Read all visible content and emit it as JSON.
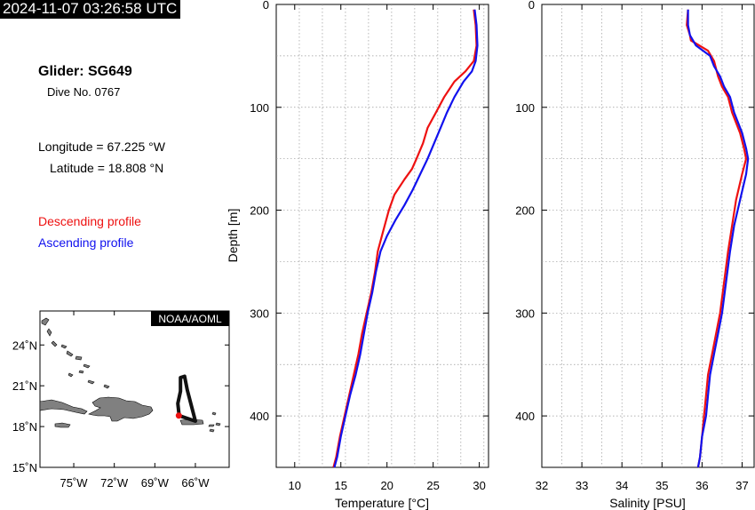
{
  "timestamp": "2024-11-07 03:26:58 UTC",
  "info": {
    "glider": "Glider: SG649",
    "dive": "Dive No. 0767",
    "longitude": "Longitude = 67.225 °W",
    "latitude": "Latitude = 18.808 °N",
    "descending_label": "Descending profile",
    "ascending_label": "Ascending profile"
  },
  "colors": {
    "descending": "#ee1111",
    "ascending": "#1111ee",
    "land": "#808080",
    "track": "#111111"
  },
  "map": {
    "credit": "NOAA/AOML",
    "lon_range": [
      -77.5,
      -63.5
    ],
    "lat_range": [
      15,
      26.5
    ],
    "lon_ticks": [
      -75,
      -72,
      -69,
      -66
    ],
    "lon_labels": [
      "75˚W",
      "72˚W",
      "69˚W",
      "66˚W"
    ],
    "lat_ticks": [
      15,
      18,
      21,
      24
    ],
    "lat_labels": [
      "15˚N",
      "18˚N",
      "21˚N",
      "24˚N"
    ],
    "track": [
      [
        -67.2,
        18.8
      ],
      [
        -66.6,
        18.6
      ],
      [
        -66.0,
        18.4
      ],
      [
        -66.6,
        20.7
      ],
      [
        -66.8,
        21.7
      ],
      [
        -67.1,
        21.6
      ],
      [
        -67.1,
        20.6
      ],
      [
        -67.3,
        19.7
      ],
      [
        -67.2,
        18.8
      ]
    ],
    "glider_position": [
      -67.225,
      18.808
    ]
  },
  "chart_data": [
    {
      "type": "line",
      "xlabel": "Temperature [°C]",
      "ylabel": "Depth [m]",
      "xlim": [
        8,
        31
      ],
      "ylim": [
        450,
        0
      ],
      "xticks": [
        10,
        15,
        20,
        25,
        30
      ],
      "yticks": [
        0,
        100,
        200,
        300,
        400
      ],
      "series": [
        {
          "name": "Descending profile",
          "x": [
            29.4,
            29.6,
            29.7,
            29.4,
            28.5,
            27.3,
            26.2,
            25.3,
            24.4,
            23.9,
            23.2,
            22.7,
            21.9,
            20.8,
            20.2,
            19.6,
            19.0,
            18.7,
            18.3,
            17.8,
            17.3,
            16.9,
            16.4,
            15.9,
            15.4,
            14.9,
            14.5,
            14.2
          ],
          "y": [
            5,
            20,
            40,
            55,
            65,
            75,
            90,
            105,
            120,
            135,
            150,
            160,
            170,
            185,
            200,
            220,
            240,
            260,
            280,
            300,
            320,
            340,
            360,
            380,
            400,
            420,
            440,
            450
          ]
        },
        {
          "name": "Ascending profile",
          "x": [
            29.5,
            29.7,
            29.8,
            29.6,
            29.2,
            28.3,
            27.3,
            26.5,
            25.8,
            25.1,
            24.4,
            23.6,
            22.8,
            21.9,
            20.9,
            20.0,
            19.3,
            18.8,
            18.4,
            17.9,
            17.5,
            17.1,
            16.6,
            16.0,
            15.5,
            15.0,
            14.6,
            14.3
          ],
          "y": [
            5,
            20,
            40,
            55,
            65,
            75,
            90,
            105,
            120,
            135,
            150,
            165,
            180,
            195,
            210,
            225,
            240,
            260,
            280,
            300,
            320,
            340,
            360,
            380,
            400,
            420,
            440,
            450
          ]
        }
      ]
    },
    {
      "type": "line",
      "xlabel": "Salinity [PSU]",
      "ylabel": "",
      "xlim": [
        32,
        37.3
      ],
      "ylim": [
        450,
        0
      ],
      "xticks": [
        32,
        33,
        34,
        35,
        36,
        37
      ],
      "yticks": [
        0,
        100,
        200,
        300,
        400
      ],
      "series": [
        {
          "name": "Descending profile",
          "x": [
            35.65,
            35.62,
            35.7,
            35.72,
            36.15,
            36.3,
            36.4,
            36.5,
            36.65,
            36.75,
            36.95,
            37.05,
            37.1,
            37.0,
            36.85,
            36.75,
            36.65,
            36.55,
            36.45,
            36.35,
            36.25,
            36.15,
            36.1,
            36.05,
            36.0,
            35.95,
            35.9
          ],
          "y": [
            5,
            20,
            30,
            35,
            45,
            55,
            70,
            80,
            90,
            105,
            125,
            140,
            150,
            165,
            190,
            215,
            240,
            270,
            300,
            320,
            340,
            360,
            380,
            400,
            420,
            440,
            450
          ]
        },
        {
          "name": "Ascending profile",
          "x": [
            35.65,
            35.65,
            35.7,
            35.85,
            36.2,
            36.3,
            36.45,
            36.55,
            36.7,
            36.8,
            37.0,
            37.1,
            37.15,
            37.1,
            36.95,
            36.8,
            36.7,
            36.6,
            36.5,
            36.4,
            36.3,
            36.2,
            36.15,
            36.1,
            36.0,
            35.95,
            35.9
          ],
          "y": [
            5,
            20,
            30,
            40,
            50,
            60,
            70,
            80,
            90,
            105,
            125,
            140,
            150,
            165,
            190,
            215,
            240,
            270,
            300,
            320,
            340,
            360,
            380,
            400,
            420,
            440,
            450
          ]
        }
      ]
    }
  ]
}
